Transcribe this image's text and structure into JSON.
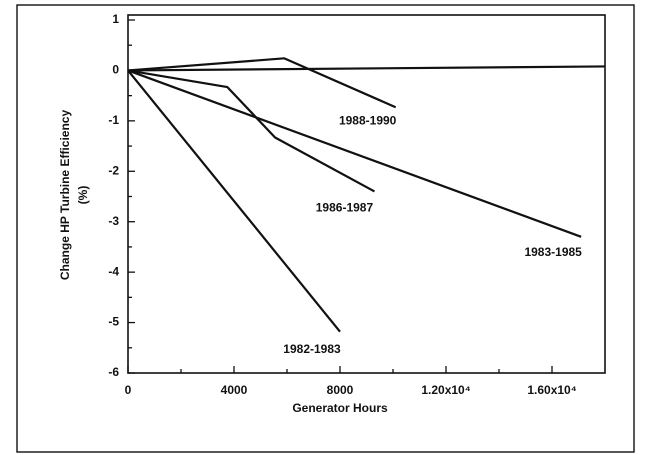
{
  "chart_data": {
    "type": "line",
    "xlabel": "Generator Hours",
    "ylabel": [
      "Change HP Turbine Efficiency",
      "(%)"
    ],
    "xlim": [
      0,
      18000
    ],
    "ylim": [
      -6,
      1
    ],
    "xticks": [
      0,
      4000,
      8000,
      {
        "value": 12000,
        "label": "1.20x10⁴"
      },
      {
        "value": 16000,
        "label": "1.60x10⁴"
      }
    ],
    "xminor_ticks": [
      2000,
      6000,
      10000,
      14000
    ],
    "yticks": [
      1,
      0,
      -1,
      -2,
      -3,
      -4,
      -5,
      -6
    ],
    "yminor_ticks": [
      0.5,
      -0.5,
      -1.5,
      -2.5,
      -3.5,
      -4.5,
      -5.5
    ],
    "hline": 0,
    "series": [
      {
        "name": "1988-1990",
        "color": "#111111",
        "x": [
          0,
          5900,
          10100
        ],
        "values": [
          0,
          0.24,
          -0.73
        ]
      },
      {
        "name": "1986-1987",
        "color": "#111111",
        "x": [
          0,
          3750,
          5550,
          9300
        ],
        "values": [
          0,
          -0.33,
          -1.33,
          -2.4
        ]
      },
      {
        "name": "1983-1985",
        "color": "#111111",
        "x": [
          0,
          17100
        ],
        "values": [
          0,
          -3.3
        ]
      },
      {
        "name": "1982-1983",
        "color": "#111111",
        "x": [
          0,
          8000
        ],
        "values": [
          0,
          -5.18
        ]
      }
    ]
  }
}
